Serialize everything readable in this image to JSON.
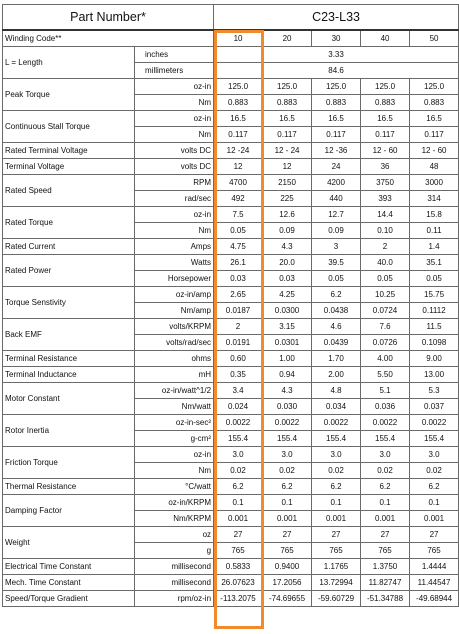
{
  "header": {
    "part_number_label": "Part Number*",
    "model": "C23-L33"
  },
  "columns": [
    "10",
    "20",
    "30",
    "40",
    "50"
  ],
  "winding_label": "Winding Code**",
  "length": {
    "label": "L = Length",
    "inches_unit": "inches",
    "inches_value": "3.33",
    "mm_unit": "millimeters",
    "mm_value": "84.6"
  },
  "groups": [
    {
      "label": "Peak Torque",
      "rows": [
        {
          "unit": "oz-in",
          "values": [
            "125.0",
            "125.0",
            "125.0",
            "125.0",
            "125.0"
          ]
        },
        {
          "unit": "Nm",
          "values": [
            "0.883",
            "0.883",
            "0.883",
            "0.883",
            "0.883"
          ]
        }
      ]
    },
    {
      "label": "Continuous Stall Torque",
      "rows": [
        {
          "unit": "oz-in",
          "values": [
            "16.5",
            "16.5",
            "16.5",
            "16.5",
            "16.5"
          ]
        },
        {
          "unit": "Nm",
          "values": [
            "0.117",
            "0.117",
            "0.117",
            "0.117",
            "0.117"
          ]
        }
      ]
    },
    {
      "label": "Rated Terminal Voltage",
      "rows": [
        {
          "unit": "volts DC",
          "values": [
            "12 -24",
            "12 - 24",
            "12 -36",
            "12 - 60",
            "12 - 60"
          ]
        }
      ]
    },
    {
      "label": "Terminal Voltage",
      "rows": [
        {
          "unit": "volts DC",
          "values": [
            "12",
            "12",
            "24",
            "36",
            "48"
          ]
        }
      ]
    },
    {
      "label": "Rated Speed",
      "rows": [
        {
          "unit": "RPM",
          "values": [
            "4700",
            "2150",
            "4200",
            "3750",
            "3000"
          ]
        },
        {
          "unit": "rad/sec",
          "values": [
            "492",
            "225",
            "440",
            "393",
            "314"
          ]
        }
      ]
    },
    {
      "label": "Rated Torque",
      "rows": [
        {
          "unit": "oz-in",
          "values": [
            "7.5",
            "12.6",
            "12.7",
            "14.4",
            "15.8"
          ]
        },
        {
          "unit": "Nm",
          "values": [
            "0.05",
            "0.09",
            "0.09",
            "0.10",
            "0.11"
          ]
        }
      ]
    },
    {
      "label": "Rated Current",
      "rows": [
        {
          "unit": "Amps",
          "values": [
            "4.75",
            "4.3",
            "3",
            "2",
            "1.4"
          ]
        }
      ]
    },
    {
      "label": "Rated Power",
      "rows": [
        {
          "unit": "Watts",
          "values": [
            "26.1",
            "20.0",
            "39.5",
            "40.0",
            "35.1"
          ]
        },
        {
          "unit": "Horsepower",
          "values": [
            "0.03",
            "0.03",
            "0.05",
            "0.05",
            "0.05"
          ]
        }
      ]
    },
    {
      "label": "Torque Senstivity",
      "rows": [
        {
          "unit": "oz-in/amp",
          "values": [
            "2.65",
            "4.25",
            "6.2",
            "10.25",
            "15.75"
          ]
        },
        {
          "unit": "Nm/amp",
          "values": [
            "0.0187",
            "0.0300",
            "0.0438",
            "0.0724",
            "0.1112"
          ]
        }
      ]
    },
    {
      "label": "Back EMF",
      "rows": [
        {
          "unit": "volts/KRPM",
          "values": [
            "2",
            "3.15",
            "4.6",
            "7.6",
            "11.5"
          ]
        },
        {
          "unit": "volts/rad/sec",
          "values": [
            "0.0191",
            "0.0301",
            "0.0439",
            "0.0726",
            "0.1098"
          ]
        }
      ]
    },
    {
      "label": "Terminal Resistance",
      "rows": [
        {
          "unit": "ohms",
          "values": [
            "0.60",
            "1.00",
            "1.70",
            "4.00",
            "9.00"
          ]
        }
      ]
    },
    {
      "label": "Terminal Inductance",
      "rows": [
        {
          "unit": "mH",
          "values": [
            "0.35",
            "0.94",
            "2.00",
            "5.50",
            "13.00"
          ]
        }
      ]
    },
    {
      "label": "Motor Constant",
      "rows": [
        {
          "unit": "oz-in/watt^1/2",
          "values": [
            "3.4",
            "4.3",
            "4.8",
            "5.1",
            "5.3"
          ]
        },
        {
          "unit": "Nm/watt",
          "values": [
            "0.024",
            "0.030",
            "0.034",
            "0.036",
            "0.037"
          ]
        }
      ]
    },
    {
      "label": "Rotor Inertia",
      "rows": [
        {
          "unit": "oz-in-sec²",
          "values": [
            "0.0022",
            "0.0022",
            "0.0022",
            "0.0022",
            "0.0022"
          ]
        },
        {
          "unit": "g-cm²",
          "values": [
            "155.4",
            "155.4",
            "155.4",
            "155.4",
            "155.4"
          ]
        }
      ]
    },
    {
      "label": "Friction Torque",
      "rows": [
        {
          "unit": "oz-in",
          "values": [
            "3.0",
            "3.0",
            "3.0",
            "3.0",
            "3.0"
          ]
        },
        {
          "unit": "Nm",
          "values": [
            "0.02",
            "0.02",
            "0.02",
            "0.02",
            "0.02"
          ]
        }
      ]
    },
    {
      "label": "Thermal Resistance",
      "rows": [
        {
          "unit": "°C/watt",
          "values": [
            "6.2",
            "6.2",
            "6.2",
            "6.2",
            "6.2"
          ]
        }
      ]
    },
    {
      "label": "Damping Factor",
      "rows": [
        {
          "unit": "oz-in/KRPM",
          "values": [
            "0.1",
            "0.1",
            "0.1",
            "0.1",
            "0.1"
          ]
        },
        {
          "unit": "Nm/KRPM",
          "values": [
            "0.001",
            "0.001",
            "0.001",
            "0.001",
            "0.001"
          ]
        }
      ]
    },
    {
      "label": "Weight",
      "rows": [
        {
          "unit": "oz",
          "values": [
            "27",
            "27",
            "27",
            "27",
            "27"
          ]
        },
        {
          "unit": "g",
          "values": [
            "765",
            "765",
            "765",
            "765",
            "765"
          ]
        }
      ]
    },
    {
      "label": "Electrical Time Constant",
      "rows": [
        {
          "unit": "millisecond",
          "values": [
            "0.5833",
            "0.9400",
            "1.1765",
            "1.3750",
            "1.4444"
          ]
        }
      ]
    },
    {
      "label": "Mech. Time Constant",
      "rows": [
        {
          "unit": "millisecond",
          "values": [
            "26.07623",
            "17.2056",
            "13.72994",
            "11.82747",
            "11.44547"
          ]
        }
      ]
    },
    {
      "label": "Speed/Torque Gradient",
      "rows": [
        {
          "unit": "rpm/oz-in",
          "values": [
            "-113.2075",
            "-74.69655",
            "-59.60729",
            "-51.34788",
            "-49.68944"
          ]
        }
      ]
    }
  ],
  "highlight": {
    "column_index": 0,
    "color": "#f08a2c"
  }
}
